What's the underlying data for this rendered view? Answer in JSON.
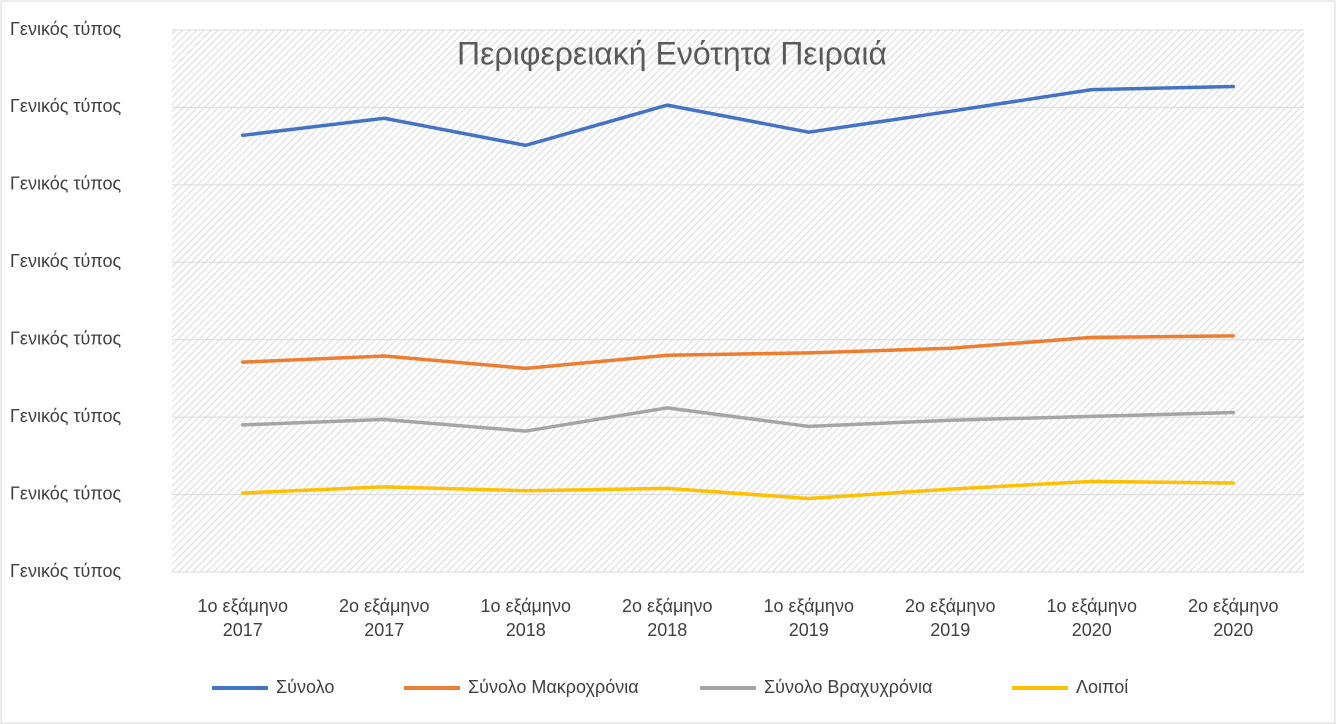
{
  "chart_data": {
    "type": "line",
    "title": "Περιφερειακή Ενότητα Πειραιά",
    "categories": [
      "1ο εξάμηνο 2017",
      "2ο εξάμηνο 2017",
      "1ο εξάμηνο 2018",
      "2ο εξάμηνο 2018",
      "1ο εξάμηνο 2019",
      "2ο εξάμηνο 2019",
      "1ο εξάμηνο 2020",
      "2ο εξάμηνο 2020"
    ],
    "series": [
      {
        "name": "Σύνολο",
        "color": "#4472c4",
        "values": [
          5.64,
          5.86,
          5.51,
          6.03,
          5.68,
          5.95,
          6.23,
          6.27
        ]
      },
      {
        "name": "Σύνολο Μακροχρόνια",
        "color": "#ed7d31",
        "values": [
          2.71,
          2.79,
          2.63,
          2.8,
          2.83,
          2.89,
          3.03,
          3.05
        ]
      },
      {
        "name": "Σύνολο Βραχυχρόνια",
        "color": "#a5a5a5",
        "values": [
          1.9,
          1.97,
          1.82,
          2.12,
          1.88,
          1.96,
          2.01,
          2.06
        ]
      },
      {
        "name": "Λοιποί",
        "color": "#ffc000",
        "values": [
          1.02,
          1.1,
          1.05,
          1.08,
          0.95,
          1.07,
          1.17,
          1.15
        ]
      }
    ],
    "ylim": [
      0,
      7
    ],
    "yticks": [
      {
        "value": 0,
        "label": "Γενικός τύπος"
      },
      {
        "value": 1,
        "label": "Γενικός τύπος"
      },
      {
        "value": 2,
        "label": "Γενικός τύπος"
      },
      {
        "value": 3,
        "label": "Γενικός τύπος"
      },
      {
        "value": 4,
        "label": "Γενικός τύπος"
      },
      {
        "value": 5,
        "label": "Γενικός τύπος"
      },
      {
        "value": 6,
        "label": "Γενικός τύπος"
      },
      {
        "value": 7,
        "label": "Γενικός τύπος"
      }
    ],
    "grid": true,
    "legend": "bottom"
  }
}
